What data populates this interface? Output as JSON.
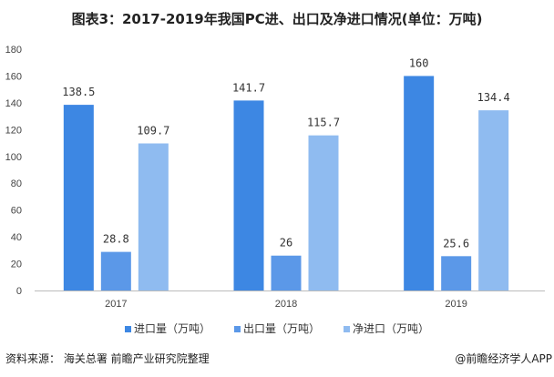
{
  "chart_data": {
    "type": "bar",
    "title": "图表3：2017-2019年我国PC进、出口及净进口情况(单位：万吨)",
    "categories": [
      "2017",
      "2018",
      "2019"
    ],
    "series": [
      {
        "name": "进口量（万吨）",
        "values": [
          138.5,
          141.7,
          160
        ],
        "labels": [
          "138.5",
          "141.7",
          "160"
        ],
        "color": "#3d87e3"
      },
      {
        "name": "出口量（万吨）",
        "values": [
          28.8,
          26,
          25.6
        ],
        "labels": [
          "28.8",
          "26",
          "25.6"
        ],
        "color": "#5b98e8"
      },
      {
        "name": "净进口（万吨）",
        "values": [
          109.7,
          115.7,
          134.4
        ],
        "labels": [
          "109.7",
          "115.7",
          "134.4"
        ],
        "color": "#8fbbf0"
      }
    ],
    "ylim": [
      0,
      180
    ],
    "yticks": [
      "0",
      "20",
      "40",
      "60",
      "80",
      "100",
      "120",
      "140",
      "160",
      "180"
    ],
    "grid": false,
    "legend_position": "bottom"
  },
  "footer": {
    "source": "资料来源： 海关总署 前瞻产业研究院整理",
    "brand": "@前瞻经济学人APP"
  }
}
